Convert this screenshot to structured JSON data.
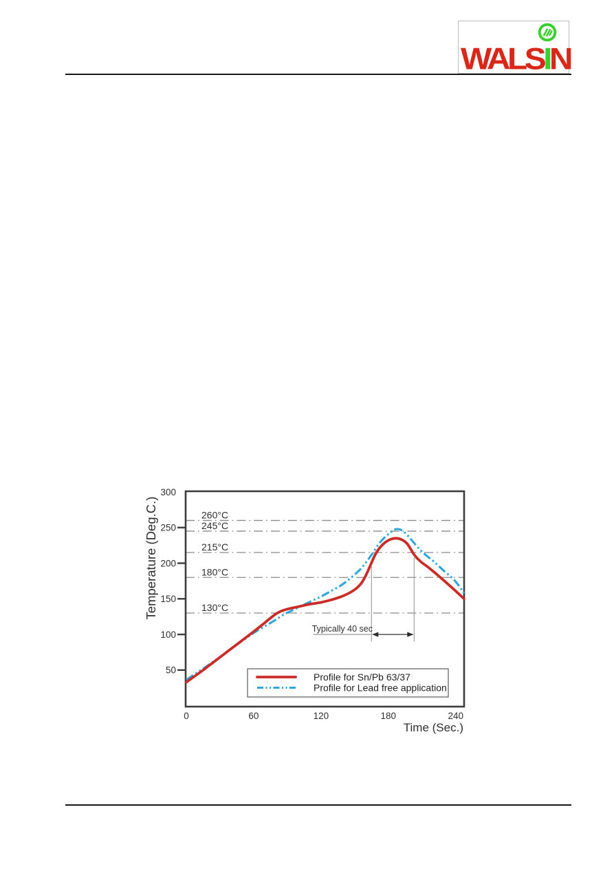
{
  "header": {
    "brand": {
      "name": "WALSIN",
      "text_left": "WALS",
      "text_i": "I",
      "text_right": "N",
      "red": "#d9281a",
      "green": "#38d02a"
    }
  },
  "chart_data": {
    "type": "line",
    "title": "",
    "xlabel": "Time (Sec.)",
    "ylabel": "Temperature (Deg.C.)",
    "xlim": [
      0,
      248
    ],
    "ylim": [
      0,
      300
    ],
    "xticks": [
      0,
      60,
      120,
      180,
      240
    ],
    "yticks": [
      50,
      100,
      150,
      200,
      250,
      300
    ],
    "grid": "horizontal dash-dot reference lines only",
    "legend_position": "inside bottom center",
    "colors": {
      "axis": "#3c3c3c",
      "grid": "#8a8a8a",
      "text": "#2e2e2e",
      "sn_pb": "#cb2b26",
      "lead_free": "#2ea7de"
    },
    "reference_lines": [
      {
        "label": "260°C",
        "value": 260
      },
      {
        "label": "245°C",
        "value": 245
      },
      {
        "label": "215°C",
        "value": 215
      },
      {
        "label": "180°C",
        "value": 180
      },
      {
        "label": "130°C",
        "value": 130
      }
    ],
    "series": [
      {
        "name": "Profile for Sn/Pb 63/37",
        "color": "#cb2b26",
        "line_style": "solid",
        "points": [
          [
            0,
            33
          ],
          [
            15,
            50
          ],
          [
            30,
            68
          ],
          [
            45,
            86
          ],
          [
            60,
            104
          ],
          [
            68,
            114
          ],
          [
            75,
            123
          ],
          [
            80,
            129
          ],
          [
            85,
            133
          ],
          [
            90,
            135.5
          ],
          [
            100,
            139
          ],
          [
            110,
            142.5
          ],
          [
            120,
            145
          ],
          [
            130,
            149
          ],
          [
            138,
            153
          ],
          [
            145,
            158
          ],
          [
            151,
            164
          ],
          [
            156,
            172
          ],
          [
            160,
            183
          ],
          [
            164,
            197
          ],
          [
            168,
            211
          ],
          [
            172,
            221
          ],
          [
            177,
            229
          ],
          [
            182,
            233.5
          ],
          [
            187,
            235
          ],
          [
            192,
            233
          ],
          [
            197,
            227
          ],
          [
            203,
            212
          ],
          [
            209,
            202
          ],
          [
            215,
            195
          ],
          [
            222,
            186
          ],
          [
            230,
            175
          ],
          [
            240,
            161
          ],
          [
            247.5,
            150
          ]
        ]
      },
      {
        "name": "Profile for Lead free application",
        "color": "#2ea7de",
        "line_style": "dash-dot-dot",
        "points": [
          [
            0,
            36.5
          ],
          [
            15,
            52
          ],
          [
            30,
            68.5
          ],
          [
            45,
            85.5
          ],
          [
            60,
            102
          ],
          [
            70,
            111.5
          ],
          [
            80,
            121
          ],
          [
            88,
            129
          ],
          [
            96,
            135
          ],
          [
            105,
            142
          ],
          [
            113,
            148
          ],
          [
            121,
            154
          ],
          [
            129,
            161
          ],
          [
            137,
            168
          ],
          [
            144,
            176
          ],
          [
            150,
            184
          ],
          [
            156,
            193
          ],
          [
            161,
            203
          ],
          [
            166,
            214
          ],
          [
            171,
            226
          ],
          [
            176,
            235
          ],
          [
            181,
            242
          ],
          [
            186,
            247.5
          ],
          [
            191,
            247
          ],
          [
            196,
            241
          ],
          [
            201,
            232
          ],
          [
            207,
            221
          ],
          [
            213,
            212
          ],
          [
            220,
            203
          ],
          [
            229,
            190
          ],
          [
            239,
            176
          ],
          [
            247.5,
            158
          ]
        ]
      }
    ],
    "annotation": {
      "text": "Typically 40 sec",
      "from_sec": 165,
      "to_sec": 203,
      "arrow_y_degc": 100,
      "leader_from_sec": 113,
      "vline_left_top_degc": 197.5,
      "vline_right_top_degc": 208,
      "vlines_bottom_degc": 90
    }
  }
}
